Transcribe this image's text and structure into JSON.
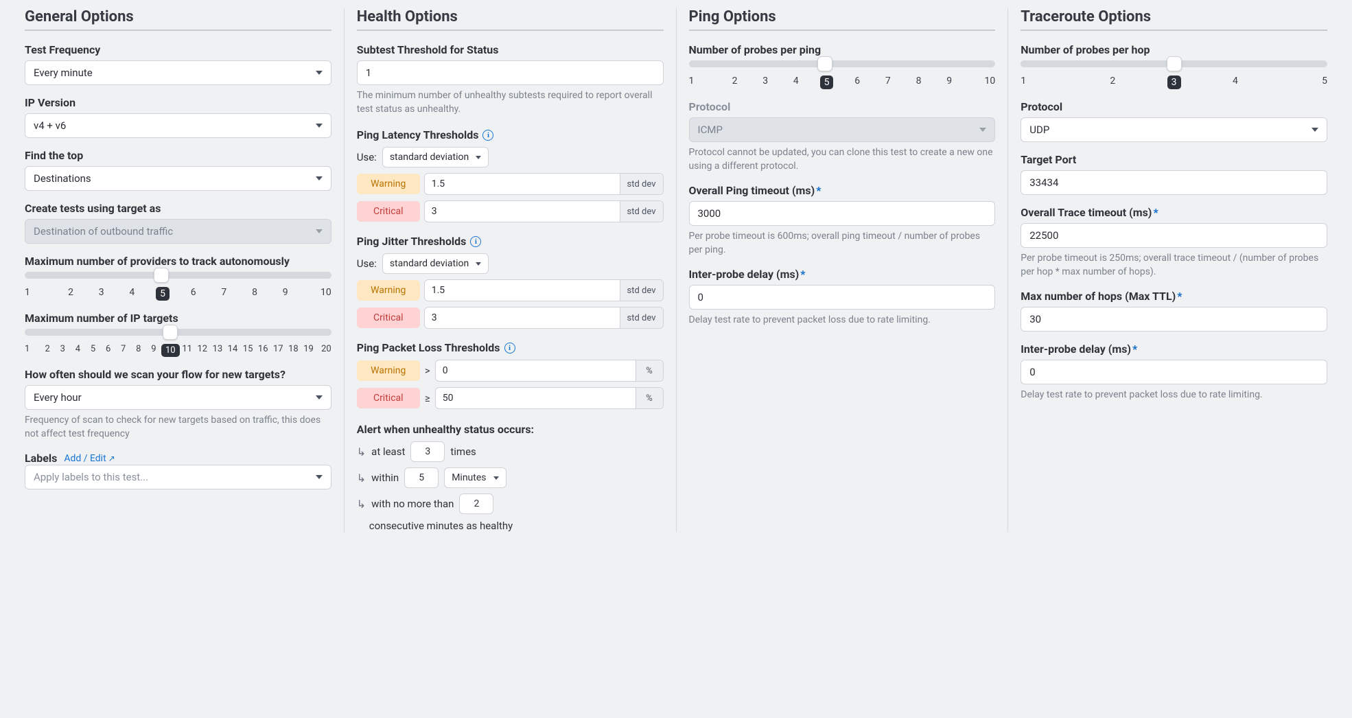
{
  "general": {
    "title": "General Options",
    "test_frequency": {
      "label": "Test Frequency",
      "value": "Every minute"
    },
    "ip_version": {
      "label": "IP Version",
      "value": "v4 + v6"
    },
    "find_top": {
      "label": "Find the top",
      "value": "Destinations"
    },
    "create_tests": {
      "label": "Create tests using target as",
      "value": "Destination of outbound traffic",
      "disabled": true
    },
    "max_providers": {
      "label": "Maximum number of providers to track autonomously",
      "min": 1,
      "max": 10,
      "value": 5,
      "ticks": [
        "1",
        "2",
        "3",
        "4",
        "5",
        "6",
        "7",
        "8",
        "9",
        "10"
      ]
    },
    "max_ip_targets": {
      "label": "Maximum number of IP targets",
      "min": 1,
      "max": 20,
      "value": 10,
      "ticks": [
        "1",
        "2",
        "3",
        "4",
        "5",
        "6",
        "7",
        "8",
        "9",
        "10",
        "11",
        "12",
        "13",
        "14",
        "15",
        "16",
        "17",
        "18",
        "19",
        "20"
      ]
    },
    "scan_freq": {
      "label": "How often should we scan your flow for new targets?",
      "value": "Every hour",
      "help": "Frequency of scan to check for new targets based on traffic, this does not affect test frequency"
    },
    "labels": {
      "label": "Labels",
      "link": "Add / Edit",
      "placeholder": "Apply labels to this test..."
    }
  },
  "health": {
    "title": "Health Options",
    "subtest_threshold": {
      "label": "Subtest Threshold for Status",
      "value": "1",
      "help": "The minimum number of unhealthy subtests required to report overall test status as unhealthy."
    },
    "use_label": "Use:",
    "use_value": "standard deviation",
    "unit_stddev": "std dev",
    "unit_pct": "%",
    "warning_label": "Warning",
    "critical_label": "Critical",
    "latency": {
      "label": "Ping Latency Thresholds",
      "warning": "1.5",
      "critical": "3"
    },
    "jitter": {
      "label": "Ping Jitter Thresholds",
      "warning": "1.5",
      "critical": "3"
    },
    "packet_loss": {
      "label": "Ping Packet Loss Thresholds",
      "warning_op": ">",
      "warning": "0",
      "critical_op": "≥",
      "critical": "50"
    },
    "alert": {
      "label": "Alert when unhealthy status occurs:",
      "at_least_pre": "at least",
      "at_least_val": "3",
      "at_least_post": "times",
      "within_pre": "within",
      "within_val": "5",
      "within_unit": "Minutes",
      "nomore_pre": "with no more than",
      "nomore_val": "2",
      "nomore_post": "consecutive minutes as healthy"
    }
  },
  "ping": {
    "title": "Ping Options",
    "probes": {
      "label": "Number of probes per ping",
      "min": 1,
      "max": 10,
      "value": 5,
      "ticks": [
        "1",
        "2",
        "3",
        "4",
        "5",
        "6",
        "7",
        "8",
        "9",
        "10"
      ]
    },
    "protocol": {
      "label": "Protocol",
      "value": "ICMP",
      "disabled": true,
      "help": "Protocol cannot be updated, you can clone this test to create a new one using a different protocol."
    },
    "timeout": {
      "label": "Overall Ping timeout (ms)",
      "value": "3000",
      "help": "Per probe timeout is 600ms; overall ping timeout / number of probes per ping."
    },
    "delay": {
      "label": "Inter-probe delay (ms)",
      "value": "0",
      "help": "Delay test rate to prevent packet loss due to rate limiting."
    }
  },
  "trace": {
    "title": "Traceroute Options",
    "probes": {
      "label": "Number of probes per hop",
      "min": 1,
      "max": 5,
      "value": 3,
      "ticks": [
        "1",
        "2",
        "3",
        "4",
        "5"
      ]
    },
    "protocol": {
      "label": "Protocol",
      "value": "UDP"
    },
    "target_port": {
      "label": "Target Port",
      "value": "33434"
    },
    "timeout": {
      "label": "Overall Trace timeout (ms)",
      "value": "22500",
      "help": "Per probe timeout is 250ms; overall trace timeout / (number of probes per hop * max number of hops)."
    },
    "max_hops": {
      "label": "Max number of hops (Max TTL)",
      "value": "30"
    },
    "delay": {
      "label": "Inter-probe delay (ms)",
      "value": "0",
      "help": "Delay test rate to prevent packet loss due to rate limiting."
    }
  }
}
